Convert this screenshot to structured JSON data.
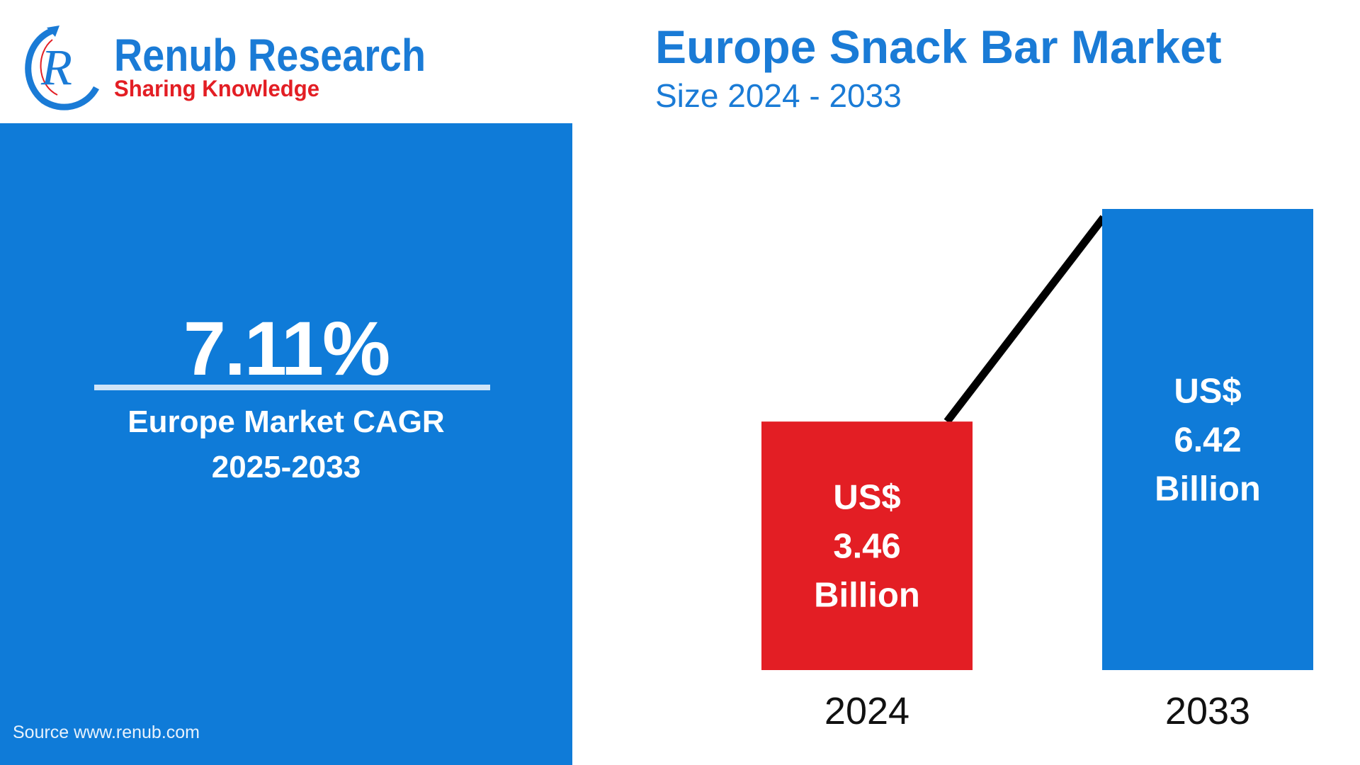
{
  "logo": {
    "name": "Renub Research",
    "tagline": "Sharing Knowledge"
  },
  "header": {
    "title": "Europe Snack Bar Market",
    "subtitle": "Size 2024 - 2033"
  },
  "cagr": {
    "value": "7.11%",
    "label_line1": "Europe Market CAGR",
    "label_line2": "2025-2033"
  },
  "source": "Source  www.renub.com",
  "colors": {
    "panel": "#0f7bd8",
    "bar_2024": "#e31e24",
    "bar_2033": "#0f7bd8",
    "title": "#1a7bd6"
  },
  "chart_data": {
    "type": "bar",
    "categories": [
      "2024",
      "2033"
    ],
    "values": [
      3.46,
      6.42
    ],
    "unit": "US$ Billion",
    "data_labels": [
      [
        "US$",
        "3.46",
        "Billion"
      ],
      [
        "US$",
        "6.42",
        "Billion"
      ]
    ],
    "title": "Europe Snack Bar Market",
    "subtitle": "Size 2024 - 2033",
    "trend_line": true
  }
}
